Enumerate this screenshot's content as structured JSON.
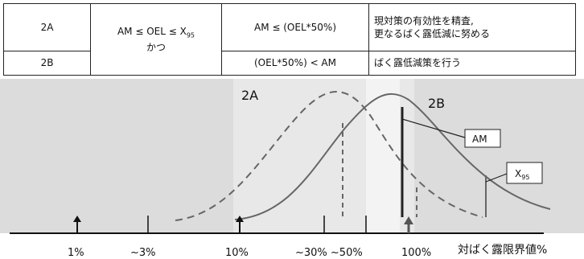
{
  "table": {
    "rows": [
      {
        "level": "2A",
        "rule": "AM ≤ (OEL*50%)",
        "action_line1": "現対策の有効性を精査,",
        "action_line2": "更なるばく露低減に努める"
      },
      {
        "level": "2B",
        "rule": "(OEL*50%) < AM",
        "action_line1": "ばく露低減策を行う",
        "action_line2": ""
      }
    ],
    "condition_prefix": "AM ≤ OEL ≤ X",
    "condition_sub": "95",
    "condition_line2": "かつ"
  },
  "chart": {
    "curve_labels": {
      "left": "2A",
      "right": "2B"
    },
    "callouts": {
      "am": "AM",
      "x_main": "X",
      "x_sub": "95"
    },
    "axis_ticks": [
      "1%",
      "~3%",
      "10%",
      "~30% ~50%",
      "100%"
    ],
    "axis_title": "対ばく露限界値%",
    "colors": {
      "band_outer": "#dcdcdc",
      "band_mid": "#e8e8e8",
      "band_inner": "#f3f3f3",
      "curve": "#666666",
      "marker": "#555555"
    }
  }
}
